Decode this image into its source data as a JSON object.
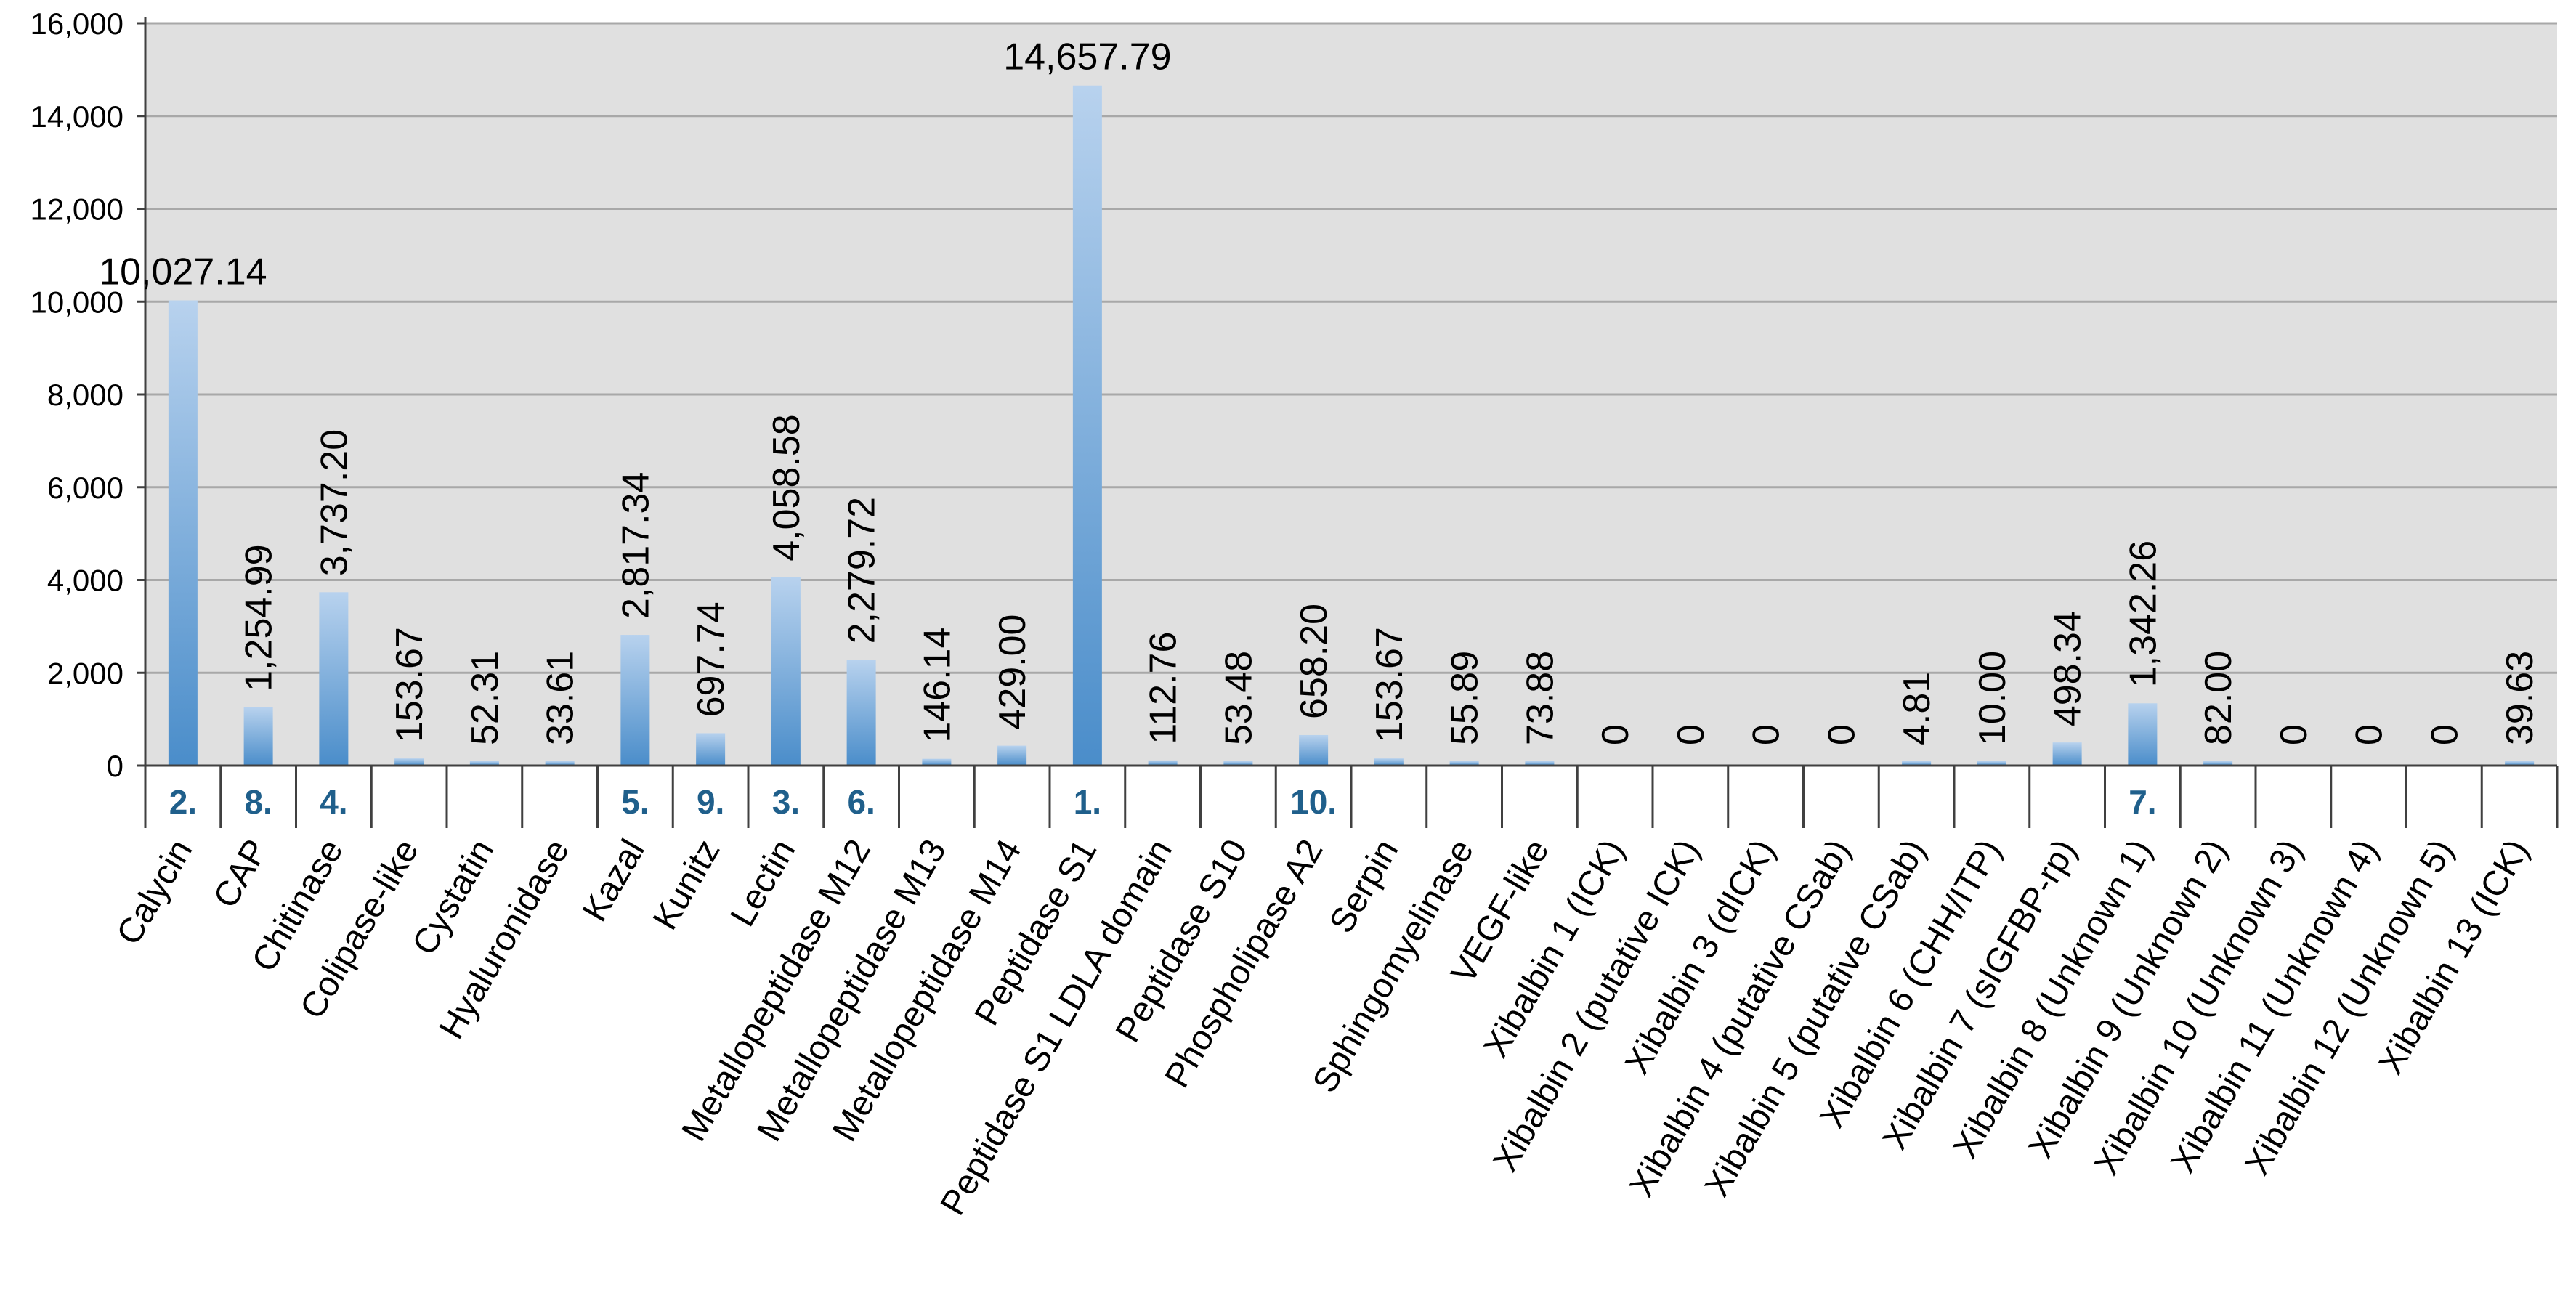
{
  "chart_data": {
    "type": "bar",
    "categories": [
      "Calycin",
      "CAP",
      "Chitinase",
      "Colipase-like",
      "Cystatin",
      "Hyaluronidase",
      "Kazal",
      "Kunitz",
      "Lectin",
      "Metallopeptidase M12",
      "Metallopeptidase M13",
      "Metallopeptidase M14",
      "Peptidase S1",
      "Peptidase S1 LDLA domain",
      "Peptidase S10",
      "Phospholipase A2",
      "Serpin",
      "Sphingomyelinase",
      "VEGF-like",
      "Xibalbin 1 (ICK)",
      "Xibalbin 2 (putative ICK)",
      "Xibalbin 3 (dICK)",
      "Xibalbin 4 (putative CSab)",
      "Xibalbin 5 (putative CSab)",
      "Xibalbin 6 (CHH/ITP)",
      "Xibalbin 7 (sIGFBP-rp)",
      "Xibalbin 8 (Unknown 1)",
      "Xibalbin 9 (Unknown 2)",
      "Xibalbin 10 (Unknown 3)",
      "Xibalbin 11 (Unknown 4)",
      "Xibalbin 12 (Unknown 5)",
      "Xibalbin 13 (ICK)"
    ],
    "values": [
      10027.14,
      1254.99,
      3737.2,
      153.67,
      52.31,
      33.61,
      2817.34,
      697.74,
      4058.58,
      2279.72,
      146.14,
      429.0,
      14657.79,
      112.76,
      53.48,
      658.2,
      153.67,
      55.89,
      73.88,
      0,
      0,
      0,
      0,
      4.81,
      10.0,
      498.34,
      1342.26,
      82.0,
      0,
      0,
      0,
      39.63
    ],
    "value_labels": [
      "10,027.14",
      "1,254.99",
      "3,737.20",
      "153.67",
      "52.31",
      "33.61",
      "2,817.34",
      "697.74",
      "4,058.58",
      "2,279.72",
      "146.14",
      "429.00",
      "14,657.79",
      "112.76",
      "53.48",
      "658.20",
      "153.67",
      "55.89",
      "73.88",
      "0",
      "0",
      "0",
      "0",
      "4.81",
      "10.00",
      "498.34",
      "1,342.26",
      "82.00",
      "0",
      "0",
      "0",
      "39.63"
    ],
    "ranks": [
      "2.",
      "8.",
      "4.",
      "",
      "",
      "",
      "5.",
      "9.",
      "3.",
      "6.",
      "",
      "",
      "1.",
      "",
      "",
      "10.",
      "",
      "",
      "",
      "",
      "",
      "",
      "",
      "",
      "",
      "",
      "7.",
      "",
      "",
      "",
      "",
      ""
    ],
    "ylim": [
      0,
      16000
    ],
    "y_ticks": [
      0,
      2000,
      4000,
      6000,
      8000,
      10000,
      12000,
      14000,
      16000
    ],
    "y_tick_labels": [
      "0",
      "2,000",
      "4,000",
      "6,000",
      "8,000",
      "10,000",
      "12,000",
      "14,000",
      "16,000"
    ],
    "grid": true,
    "title": "",
    "xlabel": "",
    "ylabel": ""
  },
  "colors": {
    "plot_background": "#e0e0e0",
    "gridline": "#a8a8a8",
    "bar_top": "#b8d2ee",
    "bar_bottom": "#4a8dca",
    "rank_text": "#1f5f8b",
    "axis": "#404040"
  }
}
